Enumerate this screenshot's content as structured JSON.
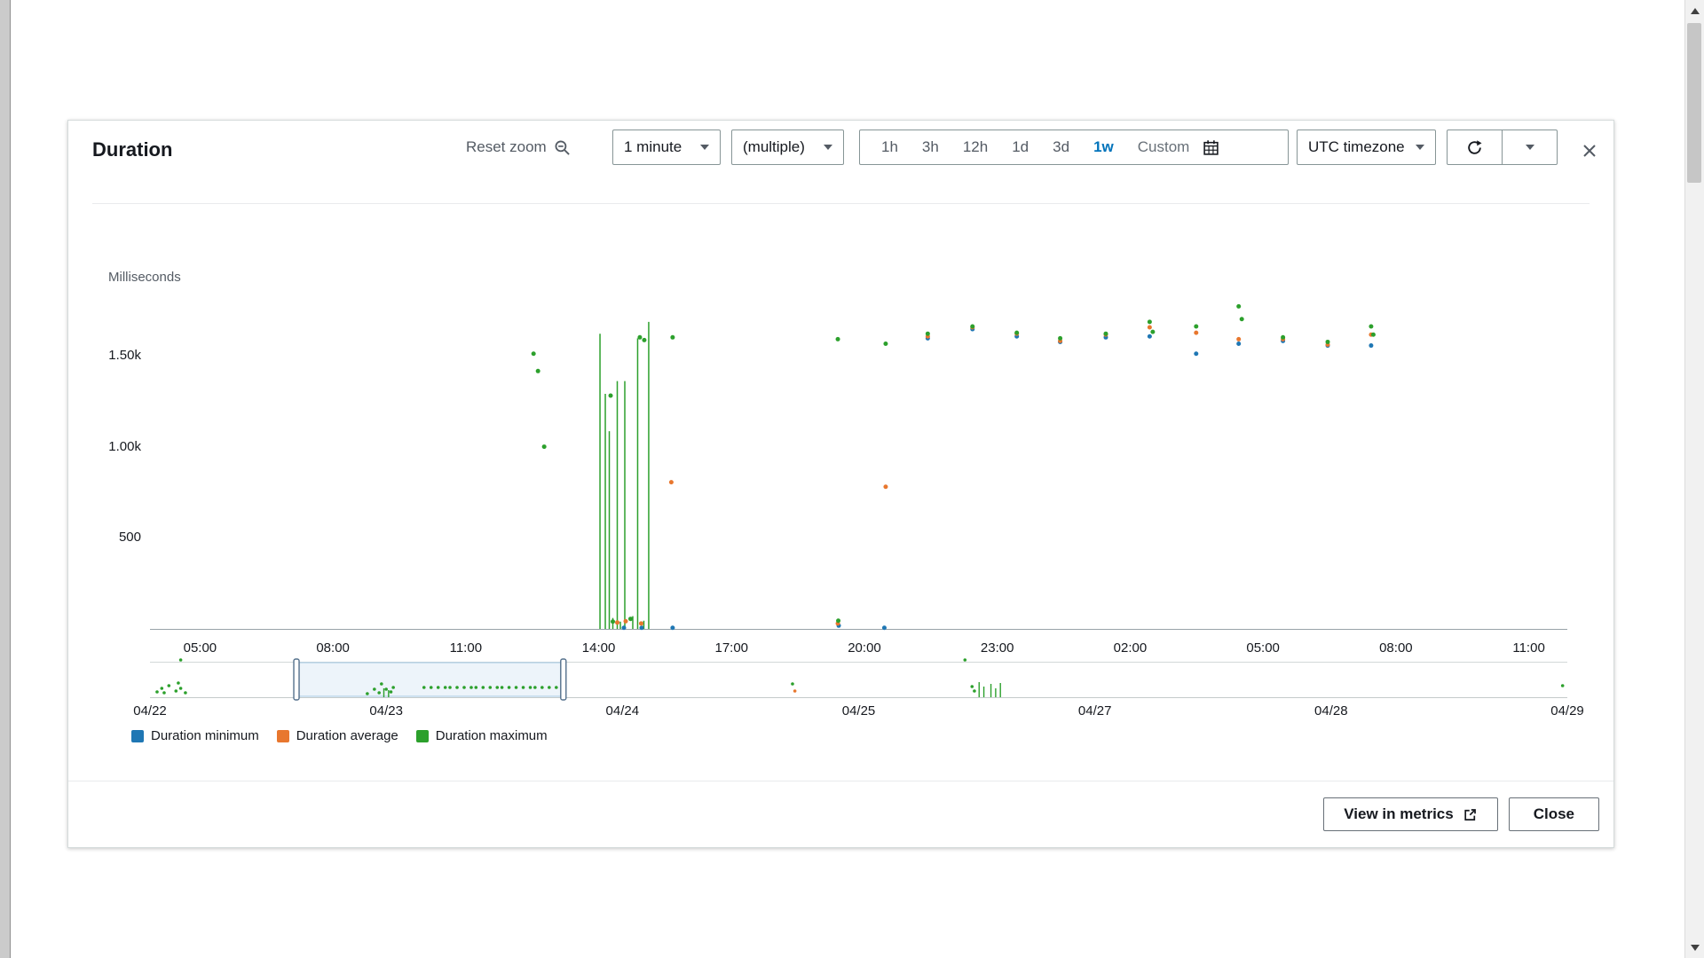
{
  "modal": {
    "title": "Duration",
    "toolbar": {
      "reset_zoom_label": "Reset zoom",
      "period_dropdown_value": "1 minute",
      "statistic_dropdown_value": "(multiple)",
      "quick_ranges": [
        "1h",
        "3h",
        "12h",
        "1d",
        "3d",
        "1w"
      ],
      "selected_range": "1w",
      "custom_label": "Custom",
      "timezone_dropdown_value": "UTC timezone"
    },
    "footer": {
      "view_in_metrics_label": "View in metrics",
      "close_label": "Close"
    }
  },
  "icons": {
    "reset_zoom": "zoom-out-icon",
    "dropdown_caret": "chevron-down-icon",
    "custom_calendar": "calendar-icon",
    "refresh": "refresh-icon",
    "refresh_options": "chevron-down-icon",
    "close": "close-icon",
    "view_external": "external-link-icon"
  },
  "legend": [
    {
      "label": "Duration minimum",
      "color": "#1f77b4"
    },
    {
      "label": "Duration average",
      "color": "#e8772e"
    },
    {
      "label": "Duration maximum",
      "color": "#2ca02c"
    }
  ],
  "chart_data": {
    "type": "scatter",
    "title": "Duration",
    "ylabel": "Milliseconds",
    "ylim": [
      0,
      1840
    ],
    "yticks": [
      {
        "v": 500,
        "label": "500"
      },
      {
        "v": 1000,
        "label": "1.00k"
      },
      {
        "v": 1500,
        "label": "1.50k"
      }
    ],
    "x_unit": "hours",
    "xlim": [
      0,
      32
    ],
    "grid": false,
    "legend_position": "bottom-left",
    "xticks": [
      {
        "x": 1.13,
        "label": "05:00"
      },
      {
        "x": 4.13,
        "label": "08:00"
      },
      {
        "x": 7.13,
        "label": "11:00"
      },
      {
        "x": 10.13,
        "label": "14:00"
      },
      {
        "x": 13.13,
        "label": "17:00"
      },
      {
        "x": 16.13,
        "label": "20:00"
      },
      {
        "x": 19.13,
        "label": "23:00"
      },
      {
        "x": 22.13,
        "label": "02:00"
      },
      {
        "x": 25.13,
        "label": "05:00"
      },
      {
        "x": 28.13,
        "label": "08:00"
      },
      {
        "x": 31.13,
        "label": "11:00"
      }
    ],
    "series": [
      {
        "name": "Duration minimum",
        "color": "#1f77b4",
        "points": [
          [
            10.7,
            6
          ],
          [
            11.1,
            6
          ],
          [
            11.8,
            6
          ],
          [
            15.55,
            18
          ],
          [
            16.58,
            6
          ],
          [
            17.56,
            1595
          ],
          [
            18.57,
            1645
          ],
          [
            19.57,
            1605
          ],
          [
            20.55,
            1575
          ],
          [
            21.58,
            1600
          ],
          [
            22.57,
            1605
          ],
          [
            23.62,
            1510
          ],
          [
            24.58,
            1565
          ],
          [
            25.58,
            1580
          ],
          [
            26.59,
            1555
          ],
          [
            27.57,
            1555
          ]
        ]
      },
      {
        "name": "Duration average",
        "color": "#e8772e",
        "points": [
          [
            10.55,
            35
          ],
          [
            10.74,
            42
          ],
          [
            11.09,
            30
          ],
          [
            11.77,
            805
          ],
          [
            15.53,
            30
          ],
          [
            16.61,
            780
          ],
          [
            17.56,
            1605
          ],
          [
            18.57,
            1655
          ],
          [
            19.57,
            1620
          ],
          [
            20.55,
            1580
          ],
          [
            21.58,
            1615
          ],
          [
            22.57,
            1655
          ],
          [
            23.62,
            1625
          ],
          [
            24.58,
            1590
          ],
          [
            25.58,
            1590
          ],
          [
            26.59,
            1560
          ],
          [
            27.57,
            1615
          ]
        ]
      },
      {
        "name": "Duration maximum",
        "color": "#2ca02c",
        "points": [
          [
            8.66,
            1510
          ],
          [
            8.76,
            1415
          ],
          [
            8.9,
            1000
          ],
          [
            10.4,
            1280
          ],
          [
            10.45,
            40
          ],
          [
            10.85,
            55
          ],
          [
            11.06,
            1600
          ],
          [
            11.16,
            1585
          ],
          [
            11.8,
            1600
          ],
          [
            15.53,
            1590
          ],
          [
            15.54,
            45
          ],
          [
            16.61,
            1565
          ],
          [
            17.56,
            1620
          ],
          [
            18.57,
            1660
          ],
          [
            19.57,
            1625
          ],
          [
            20.55,
            1595
          ],
          [
            21.58,
            1620
          ],
          [
            22.57,
            1685
          ],
          [
            22.64,
            1630
          ],
          [
            23.62,
            1660
          ],
          [
            24.58,
            1770
          ],
          [
            24.65,
            1700
          ],
          [
            25.58,
            1600
          ],
          [
            26.59,
            1575
          ],
          [
            27.57,
            1660
          ],
          [
            27.62,
            1615
          ]
        ]
      }
    ],
    "max_spikes": [
      [
        10.16,
        1620
      ],
      [
        10.28,
        1290
      ],
      [
        10.37,
        1085
      ],
      [
        10.45,
        60
      ],
      [
        10.55,
        1360
      ],
      [
        10.62,
        40
      ],
      [
        10.72,
        1360
      ],
      [
        10.9,
        70
      ],
      [
        11.01,
        1595
      ],
      [
        11.15,
        45
      ],
      [
        11.26,
        1685
      ]
    ],
    "navigator": {
      "xlim": [
        0,
        6
      ],
      "ticks": [
        {
          "x": 0,
          "label": "04/22"
        },
        {
          "x": 1,
          "label": "04/23"
        },
        {
          "x": 2,
          "label": "04/24"
        },
        {
          "x": 3,
          "label": "04/25"
        },
        {
          "x": 4,
          "label": "04/27"
        },
        {
          "x": 5,
          "label": "04/28"
        },
        {
          "x": 6,
          "label": "04/29"
        }
      ],
      "selection": [
        0.62,
        1.75
      ],
      "marks": [
        {
          "x": 0.03,
          "dy": 6
        },
        {
          "x": 0.05,
          "dy": 10
        },
        {
          "x": 0.06,
          "dy": 5
        },
        {
          "x": 0.08,
          "dy": 13
        },
        {
          "x": 0.11,
          "dy": 7
        },
        {
          "x": 0.12,
          "dy": 16
        },
        {
          "x": 0.13,
          "dy": 42
        },
        {
          "x": 0.13,
          "dy": 10
        },
        {
          "x": 0.15,
          "dy": 5
        },
        {
          "x": 0.92,
          "dy": 4
        },
        {
          "x": 0.95,
          "dy": 9
        },
        {
          "x": 0.97,
          "dy": 5
        },
        {
          "x": 0.98,
          "dy": 15
        },
        {
          "x": 1.0,
          "dy": 9
        },
        {
          "x": 1.02,
          "dy": 6
        },
        {
          "x": 1.03,
          "dy": 11
        },
        {
          "x": 1.16,
          "dy": 11
        },
        {
          "x": 1.19,
          "dy": 11
        },
        {
          "x": 1.22,
          "dy": 11
        },
        {
          "x": 1.25,
          "dy": 11
        },
        {
          "x": 1.27,
          "dy": 11
        },
        {
          "x": 1.3,
          "dy": 11
        },
        {
          "x": 1.33,
          "dy": 11
        },
        {
          "x": 1.36,
          "dy": 11
        },
        {
          "x": 1.38,
          "dy": 11
        },
        {
          "x": 1.41,
          "dy": 11
        },
        {
          "x": 1.44,
          "dy": 11
        },
        {
          "x": 1.47,
          "dy": 11
        },
        {
          "x": 1.49,
          "dy": 11
        },
        {
          "x": 1.52,
          "dy": 11
        },
        {
          "x": 1.55,
          "dy": 11
        },
        {
          "x": 1.58,
          "dy": 11
        },
        {
          "x": 1.61,
          "dy": 11
        },
        {
          "x": 1.63,
          "dy": 11
        },
        {
          "x": 1.66,
          "dy": 11
        },
        {
          "x": 1.69,
          "dy": 11
        },
        {
          "x": 1.72,
          "dy": 11
        },
        {
          "x": 2.72,
          "dy": 15
        },
        {
          "x": 2.73,
          "dy": 7,
          "color": "#e8772e"
        },
        {
          "x": 3.45,
          "dy": 42
        },
        {
          "x": 3.48,
          "dy": 12
        },
        {
          "x": 3.49,
          "dy": 7
        },
        {
          "x": 5.98,
          "dy": 13
        }
      ],
      "spikes": [
        {
          "x": 0.99,
          "h": 10
        },
        {
          "x": 1.01,
          "h": 8
        },
        {
          "x": 3.51,
          "h": 17
        },
        {
          "x": 3.53,
          "h": 12
        },
        {
          "x": 3.56,
          "h": 15
        },
        {
          "x": 3.58,
          "h": 10
        },
        {
          "x": 3.6,
          "h": 16
        }
      ]
    }
  }
}
